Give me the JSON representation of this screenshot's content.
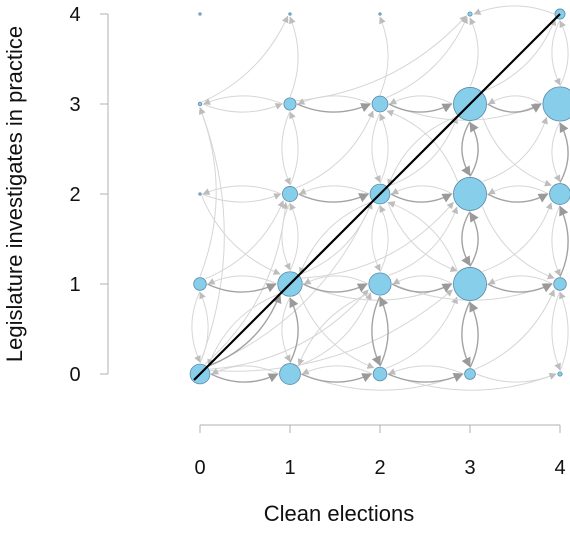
{
  "chart_data": {
    "type": "scatter",
    "xlabel": "Clean elections",
    "ylabel": "Legislature investigates in practice",
    "xlim": [
      0,
      4
    ],
    "ylim": [
      0,
      4
    ],
    "x_ticks": [
      "0",
      "1",
      "2",
      "3",
      "4"
    ],
    "y_ticks": [
      "0",
      "1",
      "2",
      "3",
      "4"
    ],
    "grid": false,
    "colors": {
      "node_fill": "#87ceeb",
      "node_stroke": "#5a8aa8",
      "edge_light": "#d6d6d6",
      "edge_dark": "#a3a3a3",
      "diagonal": "#000000",
      "axis": "#b0b0b0"
    },
    "points": [
      {
        "x": 0,
        "y": 0,
        "size": 0.55
      },
      {
        "x": 1,
        "y": 0,
        "size": 0.58
      },
      {
        "x": 2,
        "y": 0,
        "size": 0.38
      },
      {
        "x": 3,
        "y": 0,
        "size": 0.3
      },
      {
        "x": 4,
        "y": 0,
        "size": 0.12
      },
      {
        "x": 0,
        "y": 1,
        "size": 0.35
      },
      {
        "x": 1,
        "y": 1,
        "size": 0.68
      },
      {
        "x": 2,
        "y": 1,
        "size": 0.62
      },
      {
        "x": 3,
        "y": 1,
        "size": 0.92
      },
      {
        "x": 4,
        "y": 1,
        "size": 0.35
      },
      {
        "x": 0,
        "y": 2,
        "size": 0.06
      },
      {
        "x": 1,
        "y": 2,
        "size": 0.42
      },
      {
        "x": 2,
        "y": 2,
        "size": 0.55
      },
      {
        "x": 3,
        "y": 2,
        "size": 0.92
      },
      {
        "x": 4,
        "y": 2,
        "size": 0.58
      },
      {
        "x": 0,
        "y": 3,
        "size": 0.1
      },
      {
        "x": 1,
        "y": 3,
        "size": 0.34
      },
      {
        "x": 2,
        "y": 3,
        "size": 0.44
      },
      {
        "x": 3,
        "y": 3,
        "size": 0.92
      },
      {
        "x": 4,
        "y": 3,
        "size": 0.95
      },
      {
        "x": 0,
        "y": 4,
        "size": 0.02
      },
      {
        "x": 1,
        "y": 4,
        "size": 0.03
      },
      {
        "x": 2,
        "y": 4,
        "size": 0.03
      },
      {
        "x": 3,
        "y": 4,
        "size": 0.12
      },
      {
        "x": 4,
        "y": 4,
        "size": 0.28
      }
    ],
    "edges": [
      {
        "from": [
          0,
          0
        ],
        "to": [
          1,
          1
        ],
        "w": "dark"
      },
      {
        "from": [
          0,
          0
        ],
        "to": [
          1,
          0
        ],
        "w": "dark"
      },
      {
        "from": [
          0,
          0
        ],
        "to": [
          0,
          1
        ],
        "w": "light"
      },
      {
        "from": [
          0,
          0
        ],
        "to": [
          1,
          2
        ],
        "w": "light"
      },
      {
        "from": [
          0,
          0
        ],
        "to": [
          2,
          1
        ],
        "w": "light"
      },
      {
        "from": [
          0,
          0
        ],
        "to": [
          2,
          2
        ],
        "w": "light"
      },
      {
        "from": [
          0,
          0
        ],
        "to": [
          0,
          3
        ],
        "w": "light"
      },
      {
        "from": [
          0,
          0
        ],
        "to": [
          3,
          1
        ],
        "w": "light"
      },
      {
        "from": [
          0,
          1
        ],
        "to": [
          0,
          0
        ],
        "w": "light"
      },
      {
        "from": [
          0,
          1
        ],
        "to": [
          1,
          1
        ],
        "w": "dark"
      },
      {
        "from": [
          0,
          1
        ],
        "to": [
          1,
          2
        ],
        "w": "light"
      },
      {
        "from": [
          0,
          1
        ],
        "to": [
          0,
          3
        ],
        "w": "light"
      },
      {
        "from": [
          0,
          2
        ],
        "to": [
          1,
          2
        ],
        "w": "light"
      },
      {
        "from": [
          0,
          2
        ],
        "to": [
          1,
          1
        ],
        "w": "light"
      },
      {
        "from": [
          0,
          3
        ],
        "to": [
          1,
          3
        ],
        "w": "light"
      },
      {
        "from": [
          0,
          3
        ],
        "to": [
          1,
          4
        ],
        "w": "light"
      },
      {
        "from": [
          1,
          0
        ],
        "to": [
          1,
          1
        ],
        "w": "dark"
      },
      {
        "from": [
          1,
          0
        ],
        "to": [
          2,
          0
        ],
        "w": "dark"
      },
      {
        "from": [
          1,
          0
        ],
        "to": [
          2,
          1
        ],
        "w": "light"
      },
      {
        "from": [
          1,
          0
        ],
        "to": [
          3,
          0
        ],
        "w": "light"
      },
      {
        "from": [
          1,
          0
        ],
        "to": [
          0,
          0
        ],
        "w": "light"
      },
      {
        "from": [
          1,
          1
        ],
        "to": [
          2,
          1
        ],
        "w": "dark"
      },
      {
        "from": [
          1,
          1
        ],
        "to": [
          1,
          0
        ],
        "w": "light"
      },
      {
        "from": [
          1,
          1
        ],
        "to": [
          1,
          2
        ],
        "w": "light"
      },
      {
        "from": [
          1,
          1
        ],
        "to": [
          2,
          2
        ],
        "w": "light"
      },
      {
        "from": [
          1,
          1
        ],
        "to": [
          0,
          0
        ],
        "w": "light"
      },
      {
        "from": [
          1,
          1
        ],
        "to": [
          0,
          1
        ],
        "w": "light"
      },
      {
        "from": [
          1,
          1
        ],
        "to": [
          2,
          0
        ],
        "w": "light"
      },
      {
        "from": [
          1,
          1
        ],
        "to": [
          3,
          2
        ],
        "w": "light"
      },
      {
        "from": [
          1,
          1
        ],
        "to": [
          3,
          1
        ],
        "w": "light"
      },
      {
        "from": [
          1,
          2
        ],
        "to": [
          2,
          2
        ],
        "w": "dark"
      },
      {
        "from": [
          1,
          2
        ],
        "to": [
          1,
          1
        ],
        "w": "light"
      },
      {
        "from": [
          1,
          2
        ],
        "to": [
          1,
          3
        ],
        "w": "light"
      },
      {
        "from": [
          1,
          2
        ],
        "to": [
          2,
          3
        ],
        "w": "light"
      },
      {
        "from": [
          1,
          2
        ],
        "to": [
          0,
          2
        ],
        "w": "light"
      },
      {
        "from": [
          1,
          3
        ],
        "to": [
          2,
          3
        ],
        "w": "dark"
      },
      {
        "from": [
          1,
          3
        ],
        "to": [
          1,
          4
        ],
        "w": "light"
      },
      {
        "from": [
          1,
          3
        ],
        "to": [
          1,
          2
        ],
        "w": "light"
      },
      {
        "from": [
          1,
          3
        ],
        "to": [
          0,
          3
        ],
        "w": "light"
      },
      {
        "from": [
          1,
          3
        ],
        "to": [
          3,
          4
        ],
        "w": "light"
      },
      {
        "from": [
          2,
          0
        ],
        "to": [
          2,
          1
        ],
        "w": "dark"
      },
      {
        "from": [
          2,
          0
        ],
        "to": [
          3,
          0
        ],
        "w": "dark"
      },
      {
        "from": [
          2,
          0
        ],
        "to": [
          1,
          0
        ],
        "w": "light"
      },
      {
        "from": [
          2,
          0
        ],
        "to": [
          3,
          1
        ],
        "w": "light"
      },
      {
        "from": [
          2,
          0
        ],
        "to": [
          4,
          0
        ],
        "w": "light"
      },
      {
        "from": [
          2,
          1
        ],
        "to": [
          3,
          1
        ],
        "w": "dark"
      },
      {
        "from": [
          2,
          1
        ],
        "to": [
          2,
          0
        ],
        "w": "dark"
      },
      {
        "from": [
          2,
          1
        ],
        "to": [
          1,
          1
        ],
        "w": "light"
      },
      {
        "from": [
          2,
          1
        ],
        "to": [
          2,
          2
        ],
        "w": "light"
      },
      {
        "from": [
          2,
          1
        ],
        "to": [
          3,
          2
        ],
        "w": "light"
      },
      {
        "from": [
          2,
          1
        ],
        "to": [
          1,
          0
        ],
        "w": "light"
      },
      {
        "from": [
          2,
          1
        ],
        "to": [
          4,
          1
        ],
        "w": "light"
      },
      {
        "from": [
          2,
          2
        ],
        "to": [
          3,
          2
        ],
        "w": "dark"
      },
      {
        "from": [
          2,
          2
        ],
        "to": [
          2,
          1
        ],
        "w": "light"
      },
      {
        "from": [
          2,
          2
        ],
        "to": [
          2,
          3
        ],
        "w": "light"
      },
      {
        "from": [
          2,
          2
        ],
        "to": [
          1,
          2
        ],
        "w": "light"
      },
      {
        "from": [
          2,
          2
        ],
        "to": [
          3,
          3
        ],
        "w": "light"
      },
      {
        "from": [
          2,
          2
        ],
        "to": [
          3,
          1
        ],
        "w": "light"
      },
      {
        "from": [
          2,
          2
        ],
        "to": [
          1,
          1
        ],
        "w": "light"
      },
      {
        "from": [
          2,
          3
        ],
        "to": [
          3,
          3
        ],
        "w": "dark"
      },
      {
        "from": [
          2,
          3
        ],
        "to": [
          2,
          4
        ],
        "w": "light"
      },
      {
        "from": [
          2,
          3
        ],
        "to": [
          1,
          3
        ],
        "w": "light"
      },
      {
        "from": [
          2,
          3
        ],
        "to": [
          2,
          2
        ],
        "w": "light"
      },
      {
        "from": [
          2,
          3
        ],
        "to": [
          4,
          3
        ],
        "w": "light"
      },
      {
        "from": [
          2,
          3
        ],
        "to": [
          3,
          4
        ],
        "w": "light"
      },
      {
        "from": [
          3,
          0
        ],
        "to": [
          3,
          1
        ],
        "w": "dark"
      },
      {
        "from": [
          3,
          0
        ],
        "to": [
          4,
          0
        ],
        "w": "light"
      },
      {
        "from": [
          3,
          0
        ],
        "to": [
          2,
          0
        ],
        "w": "light"
      },
      {
        "from": [
          3,
          0
        ],
        "to": [
          4,
          1
        ],
        "w": "light"
      },
      {
        "from": [
          3,
          1
        ],
        "to": [
          4,
          1
        ],
        "w": "dark"
      },
      {
        "from": [
          3,
          1
        ],
        "to": [
          3,
          2
        ],
        "w": "dark"
      },
      {
        "from": [
          3,
          1
        ],
        "to": [
          3,
          0
        ],
        "w": "dark"
      },
      {
        "from": [
          3,
          1
        ],
        "to": [
          2,
          1
        ],
        "w": "light"
      },
      {
        "from": [
          3,
          1
        ],
        "to": [
          4,
          2
        ],
        "w": "light"
      },
      {
        "from": [
          3,
          1
        ],
        "to": [
          2,
          2
        ],
        "w": "light"
      },
      {
        "from": [
          3,
          2
        ],
        "to": [
          3,
          3
        ],
        "w": "dark"
      },
      {
        "from": [
          3,
          2
        ],
        "to": [
          3,
          1
        ],
        "w": "dark"
      },
      {
        "from": [
          3,
          2
        ],
        "to": [
          4,
          2
        ],
        "w": "dark"
      },
      {
        "from": [
          3,
          2
        ],
        "to": [
          2,
          2
        ],
        "w": "light"
      },
      {
        "from": [
          3,
          2
        ],
        "to": [
          4,
          3
        ],
        "w": "light"
      },
      {
        "from": [
          3,
          2
        ],
        "to": [
          2,
          3
        ],
        "w": "light"
      },
      {
        "from": [
          3,
          2
        ],
        "to": [
          4,
          1
        ],
        "w": "light"
      },
      {
        "from": [
          3,
          3
        ],
        "to": [
          4,
          3
        ],
        "w": "dark"
      },
      {
        "from": [
          3,
          3
        ],
        "to": [
          3,
          2
        ],
        "w": "dark"
      },
      {
        "from": [
          3,
          3
        ],
        "to": [
          3,
          4
        ],
        "w": "light"
      },
      {
        "from": [
          3,
          3
        ],
        "to": [
          2,
          3
        ],
        "w": "light"
      },
      {
        "from": [
          3,
          3
        ],
        "to": [
          4,
          4
        ],
        "w": "light"
      },
      {
        "from": [
          3,
          3
        ],
        "to": [
          4,
          2
        ],
        "w": "light"
      },
      {
        "from": [
          3,
          3
        ],
        "to": [
          2,
          2
        ],
        "w": "light"
      },
      {
        "from": [
          4,
          0
        ],
        "to": [
          4,
          1
        ],
        "w": "light"
      },
      {
        "from": [
          4,
          1
        ],
        "to": [
          4,
          2
        ],
        "w": "dark"
      },
      {
        "from": [
          4,
          1
        ],
        "to": [
          4,
          0
        ],
        "w": "light"
      },
      {
        "from": [
          4,
          1
        ],
        "to": [
          3,
          1
        ],
        "w": "light"
      },
      {
        "from": [
          4,
          2
        ],
        "to": [
          4,
          3
        ],
        "w": "dark"
      },
      {
        "from": [
          4,
          2
        ],
        "to": [
          4,
          1
        ],
        "w": "light"
      },
      {
        "from": [
          4,
          2
        ],
        "to": [
          3,
          2
        ],
        "w": "light"
      },
      {
        "from": [
          4,
          3
        ],
        "to": [
          4,
          4
        ],
        "w": "light"
      },
      {
        "from": [
          4,
          3
        ],
        "to": [
          3,
          3
        ],
        "w": "light"
      },
      {
        "from": [
          4,
          3
        ],
        "to": [
          4,
          2
        ],
        "w": "light"
      },
      {
        "from": [
          4,
          4
        ],
        "to": [
          4,
          3
        ],
        "w": "light"
      },
      {
        "from": [
          4,
          4
        ],
        "to": [
          3,
          4
        ],
        "w": "light"
      }
    ],
    "diagonal": {
      "from": [
        0,
        0
      ],
      "to": [
        4,
        4
      ]
    }
  }
}
